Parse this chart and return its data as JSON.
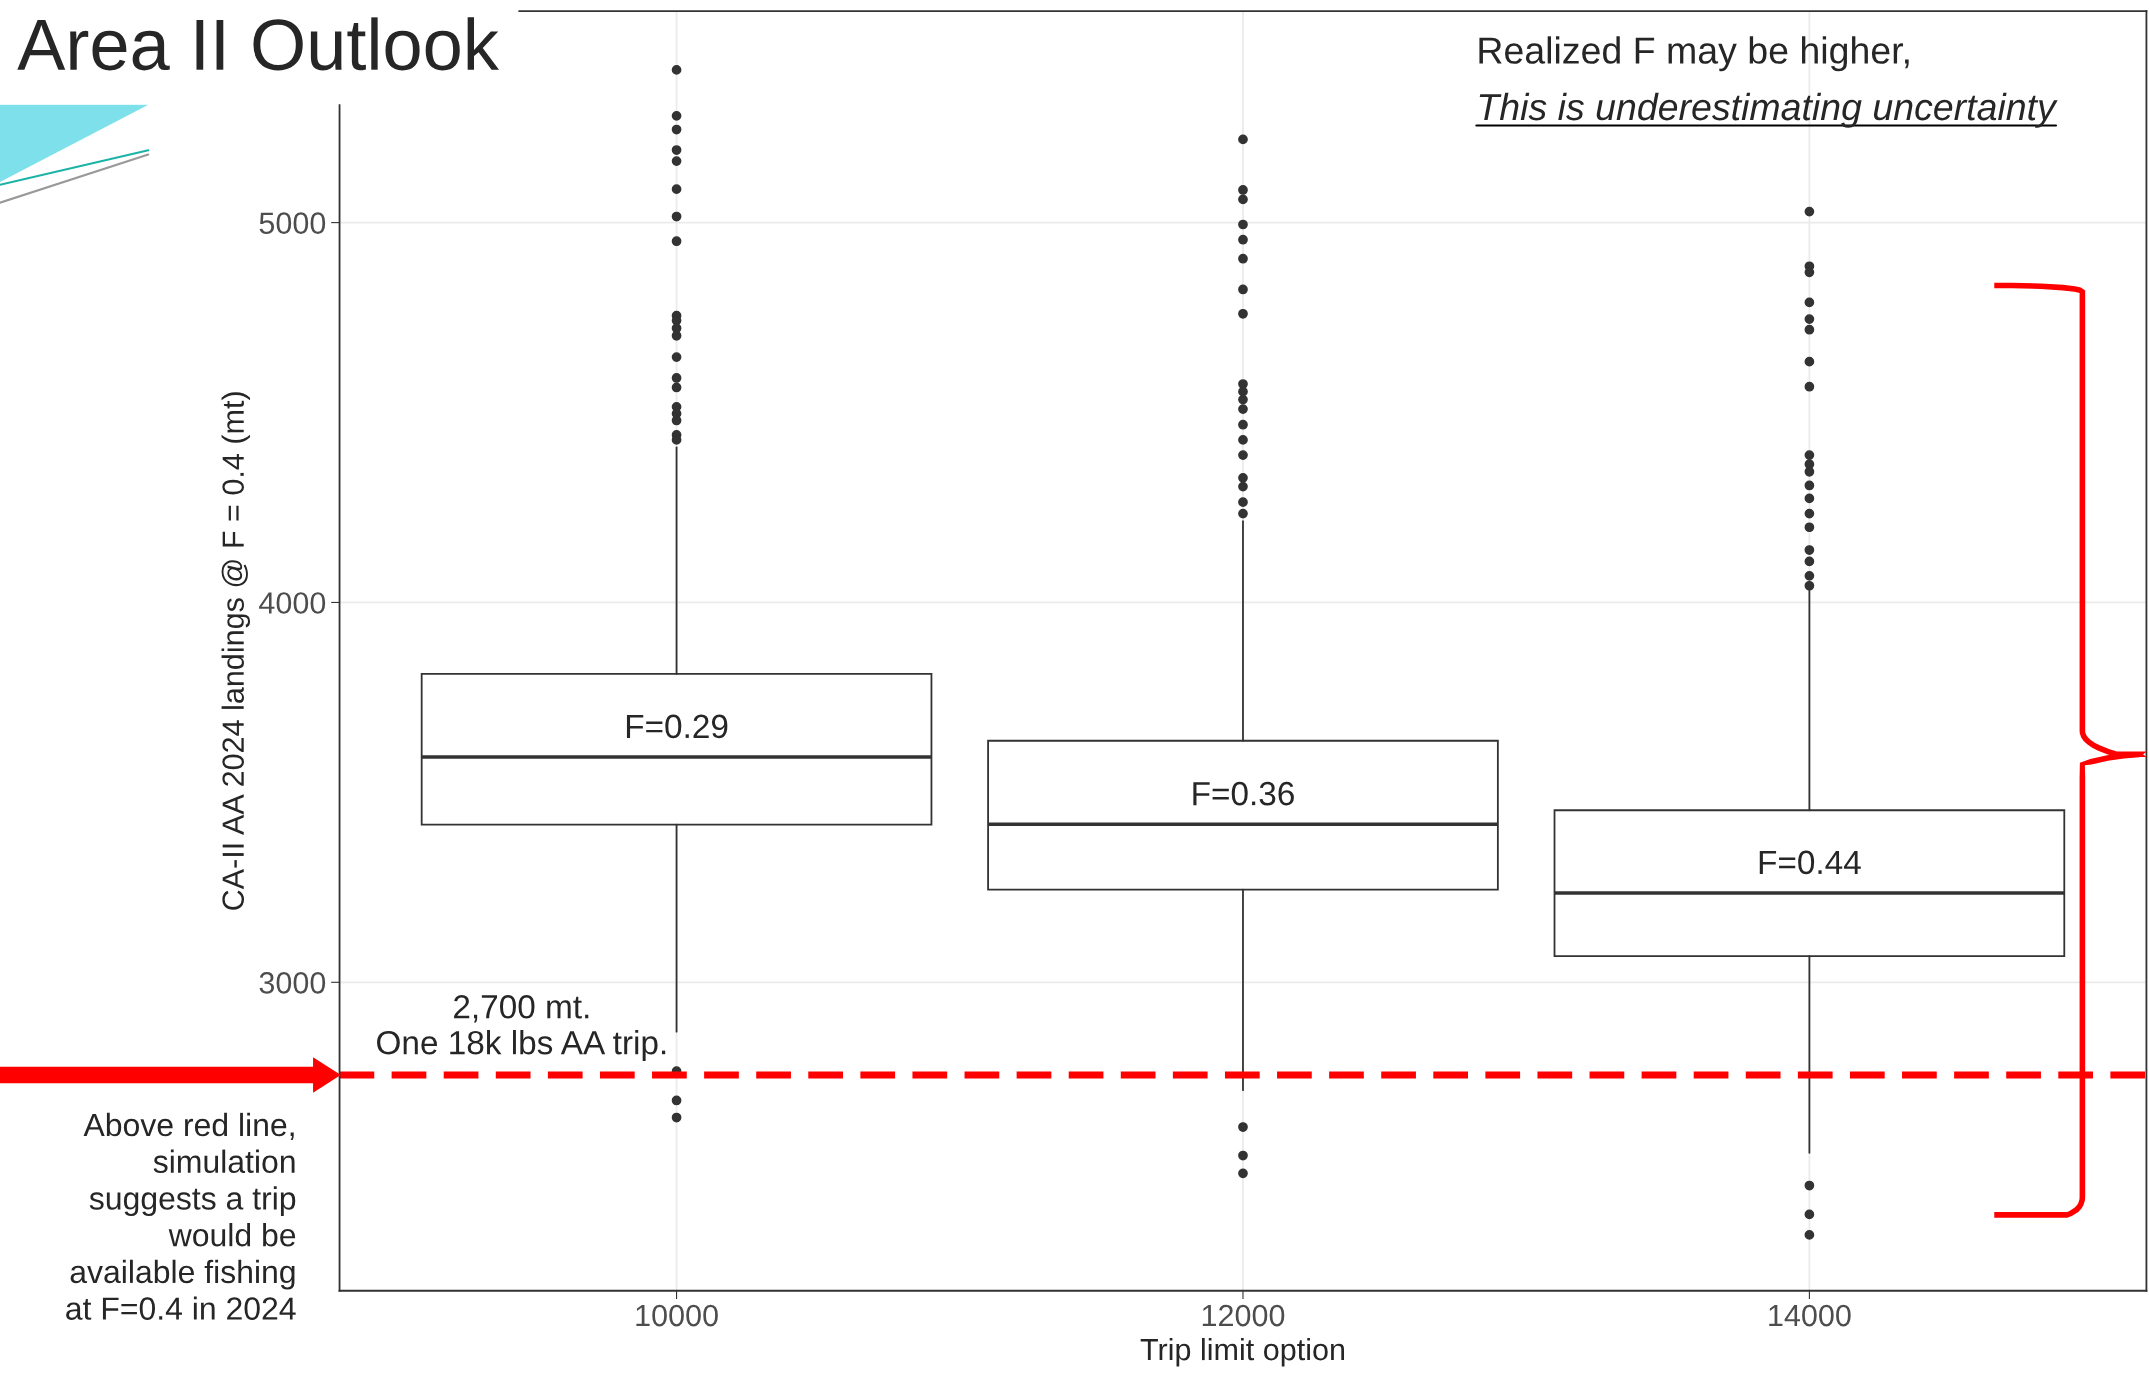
{
  "chart_data": {
    "type": "box",
    "title": "Area II Outlook",
    "xlabel": "Trip limit option",
    "ylabel": "CA-II AA 2024 landings @ F = 0.4 (mt)",
    "categories": [
      "10000",
      "12000",
      "14000"
    ],
    "boxes": [
      {
        "low": 2870,
        "q1": 3415,
        "median": 3593,
        "q3": 3812,
        "high": 4408,
        "outliers": [
          5402,
          5281,
          5245,
          5191,
          5162,
          5088,
          5016,
          4951,
          4755,
          4742,
          4722,
          4702,
          4646,
          4591,
          4566,
          4515,
          4497,
          4479,
          4441,
          4428,
          2766,
          2689,
          2644
        ]
      },
      {
        "low": 2716,
        "q1": 3244,
        "median": 3416,
        "q3": 3636,
        "high": 4214,
        "outliers": [
          5219,
          5086,
          5061,
          4995,
          4955,
          4905,
          4824,
          4760,
          4575,
          4555,
          4534,
          4509,
          4468,
          4428,
          4388,
          4328,
          4305,
          4264,
          4234,
          2619,
          2544,
          2497
        ]
      },
      {
        "low": 2551,
        "q1": 3069,
        "median": 3235,
        "q3": 3453,
        "high": 4033,
        "outliers": [
          5029,
          4885,
          4869,
          4790,
          4746,
          4718,
          4634,
          4568,
          4388,
          4364,
          4344,
          4308,
          4274,
          4234,
          4198,
          4138,
          4108,
          4070,
          4044,
          2465,
          2389,
          2335
        ]
      }
    ],
    "ylim": [
      2188,
      5557
    ],
    "yticks": [
      3000,
      4000,
      5000
    ],
    "grid": true,
    "ref_lines": [
      {
        "axis": "y",
        "value": 2756,
        "label": "2,700 mt.\nOne 18k lbs AA trip.",
        "color": "#ff0000",
        "line_style": "dashed"
      }
    ],
    "annotations": [
      "F=0.29",
      "F=0.36",
      "F=0.44",
      "Realized F may be higher,",
      "This is underestimating uncertainty",
      "Above red line,\nsimulation\nsuggests a trip\nwould be\navailable fishing\nat F=0.4 in 2024"
    ]
  }
}
